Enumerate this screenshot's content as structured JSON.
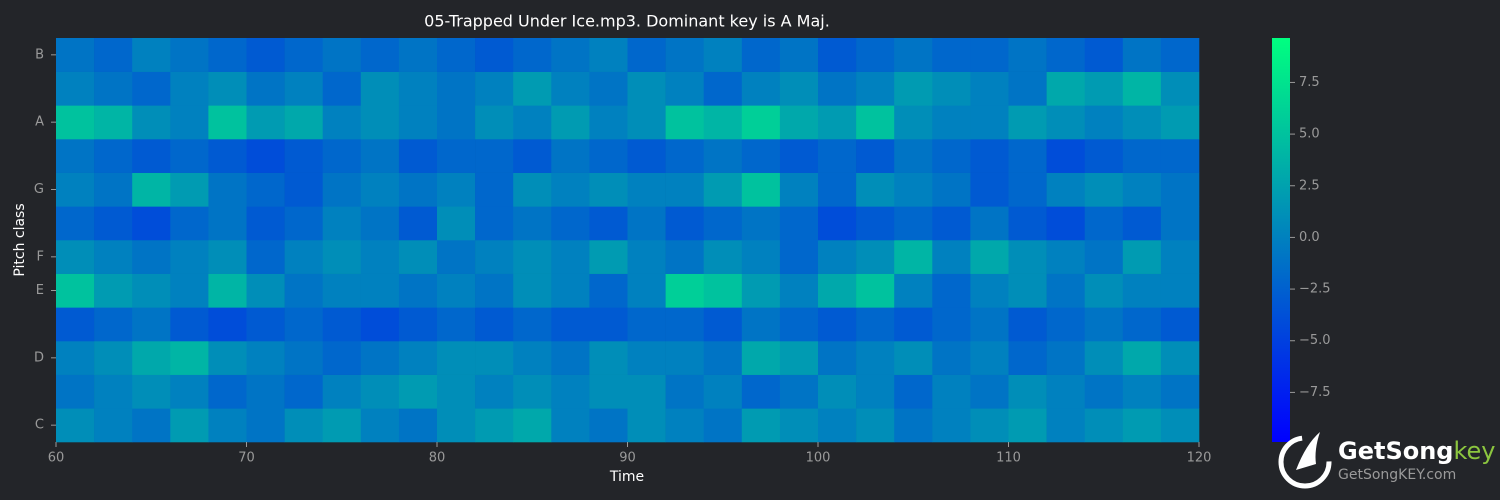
{
  "chart_data": {
    "type": "heatmap",
    "title": "05-Trapped Under Ice.mp3. Dominant key is A Maj.",
    "xlabel": "Time",
    "ylabel": "Pitch class",
    "xbins": [
      60,
      62,
      64,
      66,
      68,
      70,
      72,
      74,
      76,
      78,
      80,
      82,
      84,
      86,
      88,
      90,
      92,
      94,
      96,
      98,
      100,
      102,
      104,
      106,
      108,
      110,
      112,
      114,
      116,
      118,
      120
    ],
    "xlim": [
      60,
      120
    ],
    "xticks": [
      60,
      70,
      80,
      90,
      100,
      110,
      120
    ],
    "categories": [
      "C",
      null,
      "D",
      null,
      "E",
      "F",
      null,
      "G",
      null,
      "A",
      null,
      "B"
    ],
    "values": [
      [
        1,
        0,
        -1,
        2,
        0,
        -1,
        1,
        2,
        0,
        -1,
        1,
        2,
        3,
        0,
        -1,
        1,
        0,
        -1,
        2,
        1,
        0,
        1,
        -1,
        0,
        1,
        2,
        0,
        1,
        2,
        1
      ],
      [
        -1,
        0,
        1,
        0,
        -2,
        -1,
        -2,
        0,
        1,
        2,
        1,
        0,
        1,
        0,
        1,
        1,
        -1,
        0,
        -2,
        -1,
        1,
        0,
        -2,
        0,
        -1,
        1,
        0,
        -1,
        0,
        -1
      ],
      [
        0,
        1,
        3,
        4,
        1,
        0,
        -1,
        -2,
        -1,
        0,
        1,
        1,
        0,
        -1,
        1,
        0,
        0,
        -1,
        3,
        2,
        -1,
        0,
        1,
        -1,
        0,
        -2,
        -1,
        1,
        3,
        1
      ],
      [
        -3,
        -2,
        -1,
        -3,
        -4,
        -3,
        -2,
        -3,
        -4,
        -3,
        -2,
        -3,
        -2,
        -3,
        -3,
        -2,
        -2,
        -3,
        -1,
        -2,
        -3,
        -2,
        -3,
        -2,
        -1,
        -3,
        -2,
        -1,
        -2,
        -3
      ],
      [
        5,
        2,
        1,
        0,
        4,
        1,
        -1,
        0,
        0,
        -1,
        0,
        -1,
        1,
        0,
        -2,
        0,
        6,
        5,
        2,
        0,
        3,
        5,
        0,
        -2,
        0,
        1,
        -1,
        1,
        0,
        0
      ],
      [
        1,
        0,
        -1,
        0,
        1,
        -2,
        0,
        1,
        0,
        1,
        -1,
        0,
        1,
        0,
        2,
        0,
        -1,
        1,
        0,
        -2,
        0,
        1,
        4,
        0,
        3,
        1,
        0,
        -1,
        2,
        0
      ],
      [
        -2,
        -3,
        -4,
        -2,
        -1,
        -3,
        -2,
        0,
        -1,
        -3,
        1,
        -2,
        -1,
        -2,
        -3,
        -1,
        -3,
        -2,
        -1,
        -2,
        -4,
        -3,
        -2,
        -3,
        -1,
        -3,
        -4,
        -2,
        -3,
        -1
      ],
      [
        0,
        -1,
        4,
        2,
        -1,
        -2,
        -3,
        -1,
        0,
        -1,
        0,
        -2,
        1,
        0,
        1,
        0,
        0,
        2,
        5,
        0,
        -2,
        1,
        0,
        -1,
        -3,
        -2,
        0,
        1,
        0,
        -1
      ],
      [
        -1,
        -2,
        -3,
        -2,
        -3,
        -4,
        -3,
        -2,
        -1,
        -3,
        -2,
        -2,
        -3,
        -1,
        -2,
        -3,
        -2,
        -1,
        -2,
        -3,
        -2,
        -3,
        -1,
        -2,
        -3,
        -2,
        -4,
        -3,
        -2,
        -2
      ],
      [
        5,
        4,
        1,
        0,
        5,
        2,
        3,
        0,
        1,
        0,
        -1,
        1,
        0,
        2,
        0,
        1,
        5,
        4,
        6,
        3,
        2,
        5,
        1,
        0,
        0,
        2,
        1,
        0,
        1,
        2
      ],
      [
        0,
        -1,
        -2,
        0,
        1,
        -1,
        0,
        -2,
        1,
        0,
        -1,
        0,
        2,
        0,
        -1,
        1,
        0,
        -2,
        0,
        1,
        -1,
        0,
        2,
        1,
        0,
        -1,
        3,
        2,
        4,
        1
      ],
      [
        -1,
        -2,
        0,
        -1,
        -2,
        -3,
        -2,
        -1,
        -2,
        -1,
        -2,
        -3,
        -2,
        -1,
        0,
        -2,
        -1,
        0,
        -2,
        -1,
        -3,
        -2,
        -1,
        -2,
        -2,
        -1,
        -2,
        -3,
        -1,
        -2
      ]
    ],
    "colormap": [
      "#0000ff",
      "#00ff80"
    ],
    "clim": [
      -9.9,
      9.65
    ],
    "cticks": [
      {
        "value": -7.5,
        "label": "−7.5"
      },
      {
        "value": -5,
        "label": "−5.0"
      },
      {
        "value": -2.5,
        "label": "−2.5"
      },
      {
        "value": 0,
        "label": "0.0"
      },
      {
        "value": 2.5,
        "label": "2.5"
      },
      {
        "value": 5,
        "label": "5.0"
      },
      7.5
    ]
  },
  "logo": {
    "name": "GetSong",
    "accent": "key",
    "url": "GetSongKEY.com"
  }
}
